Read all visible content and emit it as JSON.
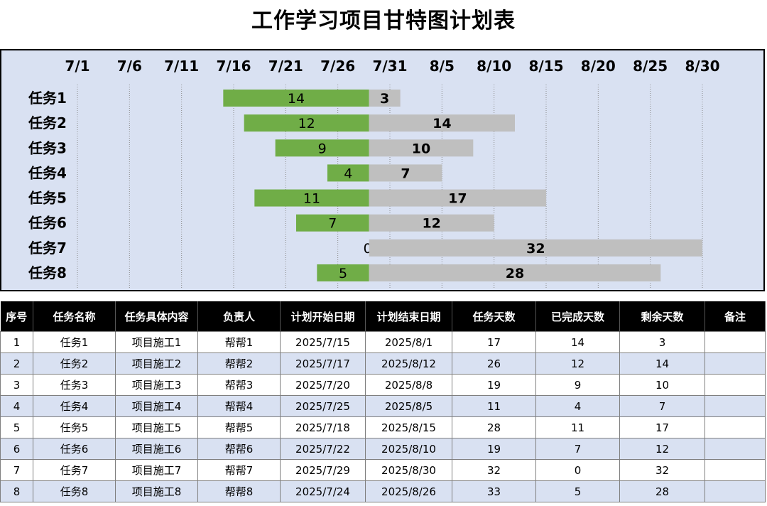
{
  "title": "工作学习项目甘特图计划表",
  "chart_data": {
    "type": "bar",
    "orientation": "horizontal-stacked",
    "x_ticks": [
      "7/1",
      "7/6",
      "7/11",
      "7/16",
      "7/21",
      "7/26",
      "7/31",
      "8/5",
      "8/10",
      "8/15",
      "8/20",
      "8/25",
      "8/30"
    ],
    "xlim": [
      "2025/7/1",
      "2025/8/30"
    ],
    "categories": [
      "任务1",
      "任务2",
      "任务3",
      "任务4",
      "任务5",
      "任务6",
      "任务7",
      "任务8"
    ],
    "start": [
      "2025/7/15",
      "2025/7/17",
      "2025/7/20",
      "2025/7/25",
      "2025/7/18",
      "2025/7/22",
      "2025/7/29",
      "2025/7/24"
    ],
    "series": [
      {
        "values": [
          14,
          12,
          9,
          4,
          11,
          7,
          0,
          5
        ],
        "color": "#70ad47"
      },
      {
        "values": [
          3,
          14,
          10,
          7,
          17,
          12,
          32,
          28
        ],
        "color": "#bfbfbf"
      }
    ],
    "grid": true,
    "legend": "none"
  },
  "table": {
    "headers": [
      "序号",
      "任务名称",
      "任务具体内容",
      "负责人",
      "计划开始日期",
      "计划结束日期",
      "任务天数",
      "已完成天数",
      "剩余天数",
      "备注"
    ],
    "rows": [
      [
        "1",
        "任务1",
        "项目施工1",
        "帮帮1",
        "2025/7/15",
        "2025/8/1",
        "17",
        "14",
        "3",
        ""
      ],
      [
        "2",
        "任务2",
        "项目施工2",
        "帮帮2",
        "2025/7/17",
        "2025/8/12",
        "26",
        "12",
        "14",
        ""
      ],
      [
        "3",
        "任务3",
        "项目施工3",
        "帮帮3",
        "2025/7/20",
        "2025/8/8",
        "19",
        "9",
        "10",
        ""
      ],
      [
        "4",
        "任务4",
        "项目施工4",
        "帮帮4",
        "2025/7/25",
        "2025/8/5",
        "11",
        "4",
        "7",
        ""
      ],
      [
        "5",
        "任务5",
        "项目施工5",
        "帮帮5",
        "2025/7/18",
        "2025/8/15",
        "28",
        "11",
        "17",
        ""
      ],
      [
        "6",
        "任务6",
        "项目施工6",
        "帮帮6",
        "2025/7/22",
        "2025/8/10",
        "19",
        "7",
        "12",
        ""
      ],
      [
        "7",
        "任务7",
        "项目施工7",
        "帮帮7",
        "2025/7/29",
        "2025/8/30",
        "32",
        "0",
        "32",
        ""
      ],
      [
        "8",
        "任务8",
        "项目施工8",
        "帮帮8",
        "2025/7/24",
        "2025/8/26",
        "33",
        "5",
        "28",
        ""
      ]
    ]
  }
}
